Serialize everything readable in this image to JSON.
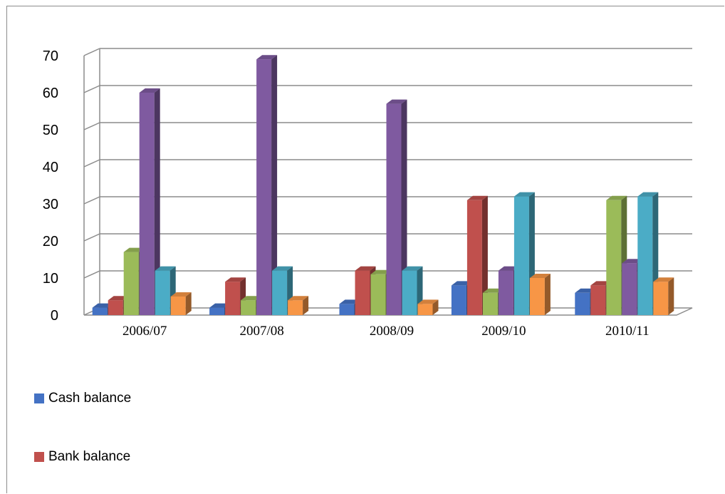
{
  "chart_data": {
    "type": "bar",
    "style": "3d-clustered-column",
    "categories": [
      "2006/07",
      "2007/08",
      "2008/09",
      "2009/10",
      "2010/11"
    ],
    "ylim": [
      0,
      70
    ],
    "yticks": [
      "0",
      "10",
      "20",
      "30",
      "40",
      "50",
      "60",
      "70"
    ],
    "grid": true,
    "legend_placement": "bottom-left",
    "series": [
      {
        "name": "Cash balance",
        "color": "#4472c4",
        "values": [
          2,
          2,
          3,
          8,
          6
        ]
      },
      {
        "name": "Bank balance",
        "color": "#c0504d",
        "values": [
          4,
          9,
          12,
          31,
          8
        ]
      },
      {
        "color": "#9bbb59",
        "values": [
          17,
          4,
          11,
          6,
          31
        ]
      },
      {
        "color": "#7f5aa0",
        "values": [
          60,
          69,
          57,
          12,
          14
        ]
      },
      {
        "color": "#4bacc6",
        "values": [
          12,
          12,
          12,
          32,
          32
        ]
      },
      {
        "color": "#f79646",
        "values": [
          5,
          4,
          3,
          10,
          9
        ]
      }
    ]
  }
}
